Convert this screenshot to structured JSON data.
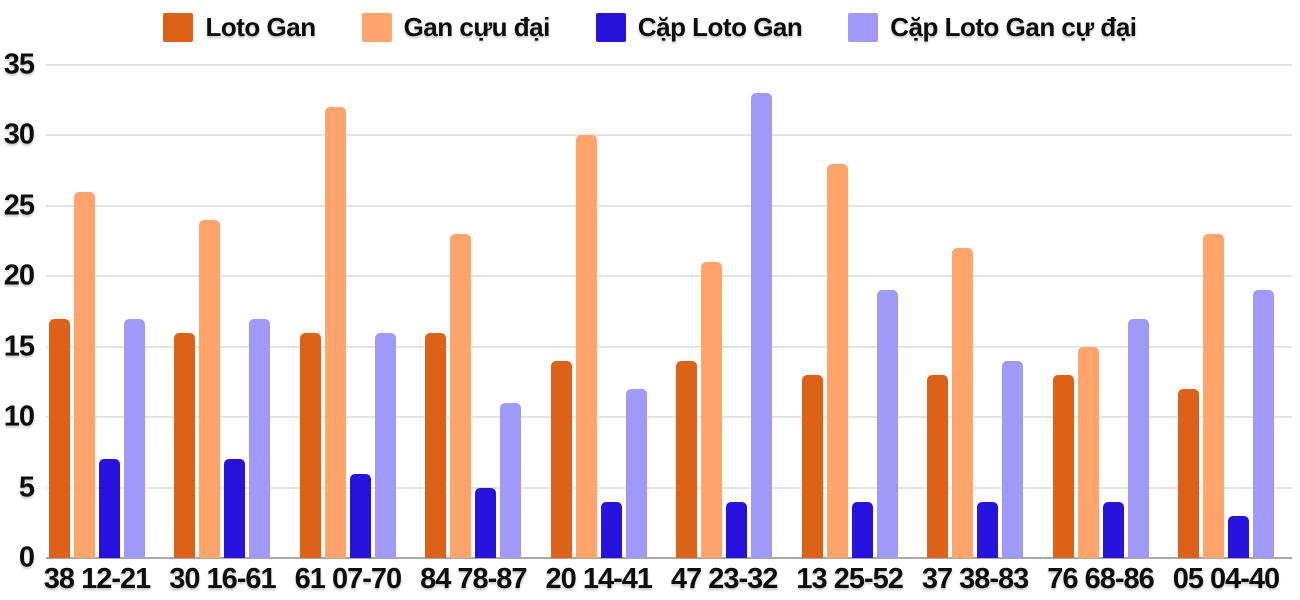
{
  "chart_data": {
    "type": "bar",
    "title": "",
    "xlabel": "",
    "ylabel": "",
    "categories": [
      "38 12-21",
      "30 16-61",
      "61 07-70",
      "84 78-87",
      "20 14-41",
      "47 23-32",
      "13 25-52",
      "37 38-83",
      "76 68-86",
      "05 04-40"
    ],
    "series": [
      {
        "name": "Loto Gan",
        "color": "#dd6117",
        "values": [
          17,
          16,
          16,
          16,
          14,
          14,
          13,
          13,
          13,
          12
        ]
      },
      {
        "name": "Gan cựu đại",
        "color": "#ffa46a",
        "values": [
          26,
          24,
          32,
          23,
          30,
          21,
          28,
          22,
          15,
          23
        ]
      },
      {
        "name": "Cặp Loto Gan",
        "color": "#2713dd",
        "values": [
          7,
          7,
          6,
          5,
          4,
          4,
          4,
          4,
          4,
          3
        ]
      },
      {
        "name": "Cặp Loto Gan cự đại",
        "color": "#a099f8",
        "values": [
          17,
          17,
          16,
          11,
          12,
          33,
          19,
          14,
          17,
          19
        ]
      }
    ],
    "ylim": [
      0,
      35
    ],
    "yticks": [
      0,
      5,
      10,
      15,
      20,
      25,
      30,
      35
    ],
    "grid": true,
    "legend_position": "top",
    "colors": {
      "background": "#ffffff",
      "gridline": "#e4e4e4",
      "axis_line": "#a9a9a9",
      "text": "#0d0d0d"
    }
  }
}
